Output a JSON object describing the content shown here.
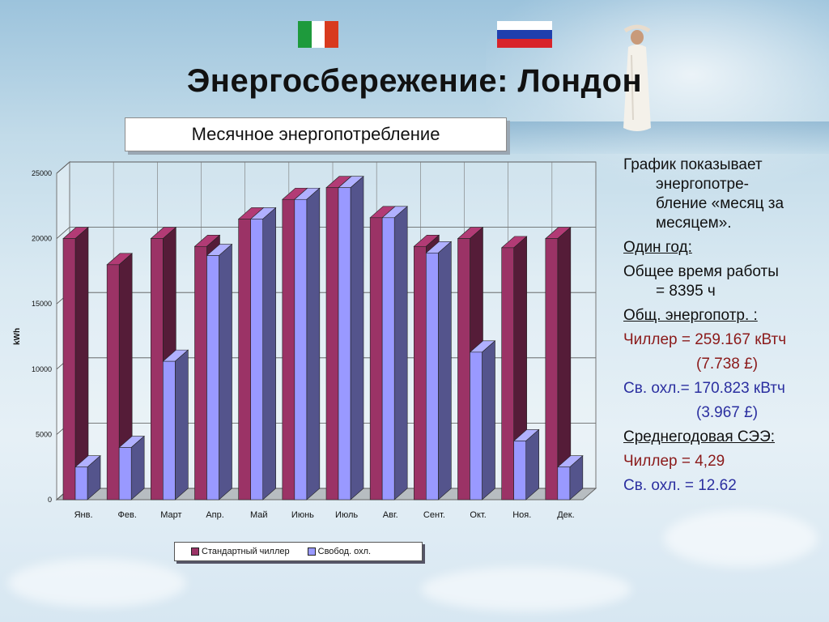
{
  "title": "Энергосбережение: Лондон",
  "subtitle": "Месячное энергопотребление",
  "flags": [
    {
      "name": "italy",
      "colors": [
        "#1e9a3c",
        "#ffffff",
        "#d83a1e"
      ]
    },
    {
      "name": "russia",
      "colors": [
        "#ffffff",
        "#1f3fae",
        "#d8232a"
      ]
    }
  ],
  "chart_data": {
    "type": "bar",
    "ylabel": "kWh",
    "ylim": [
      0,
      25000
    ],
    "yticks": [
      "0",
      "5000",
      "10000",
      "15000",
      "20000",
      "25000"
    ],
    "categories": [
      "Янв.",
      "Фев.",
      "Март",
      "Апр.",
      "Май",
      "Июнь",
      "Июль",
      "Авг.",
      "Сент.",
      "Окт.",
      "Ноя.",
      "Дек."
    ],
    "series": [
      {
        "name": "Стандартный чиллер",
        "color": "#9b3366",
        "values": [
          20000,
          18000,
          20000,
          19400,
          21500,
          23000,
          23900,
          21600,
          19400,
          20000,
          19300,
          20000
        ]
      },
      {
        "name": "Свобод. охл.",
        "color": "#9999ff",
        "values": [
          2500,
          4000,
          10600,
          18700,
          21500,
          23000,
          23900,
          21600,
          18900,
          11300,
          4500,
          2500
        ]
      }
    ],
    "legend": "bottom"
  },
  "side": {
    "intro": "График показывает",
    "intro2": "энергопотре-",
    "intro3": "бление «месяц за",
    "intro4": "месяцем».",
    "year": "Один год:",
    "hours_label": "Общее время работы",
    "hours_value": "= 8395 ч",
    "total_label": "Общ. энергопотр. :",
    "chiller_energy": "Чиллер = 259.167 кВтч",
    "chiller_cost": "(7.738 £)",
    "free_energy": "Св. охл.= 170.823 кВтч",
    "free_cost": "(3.967 £)",
    "see_label": "Среднегодовая СЭЭ:",
    "chiller_see": "Чиллер = 4,29",
    "free_see": "Св. охл. = 12.62"
  }
}
